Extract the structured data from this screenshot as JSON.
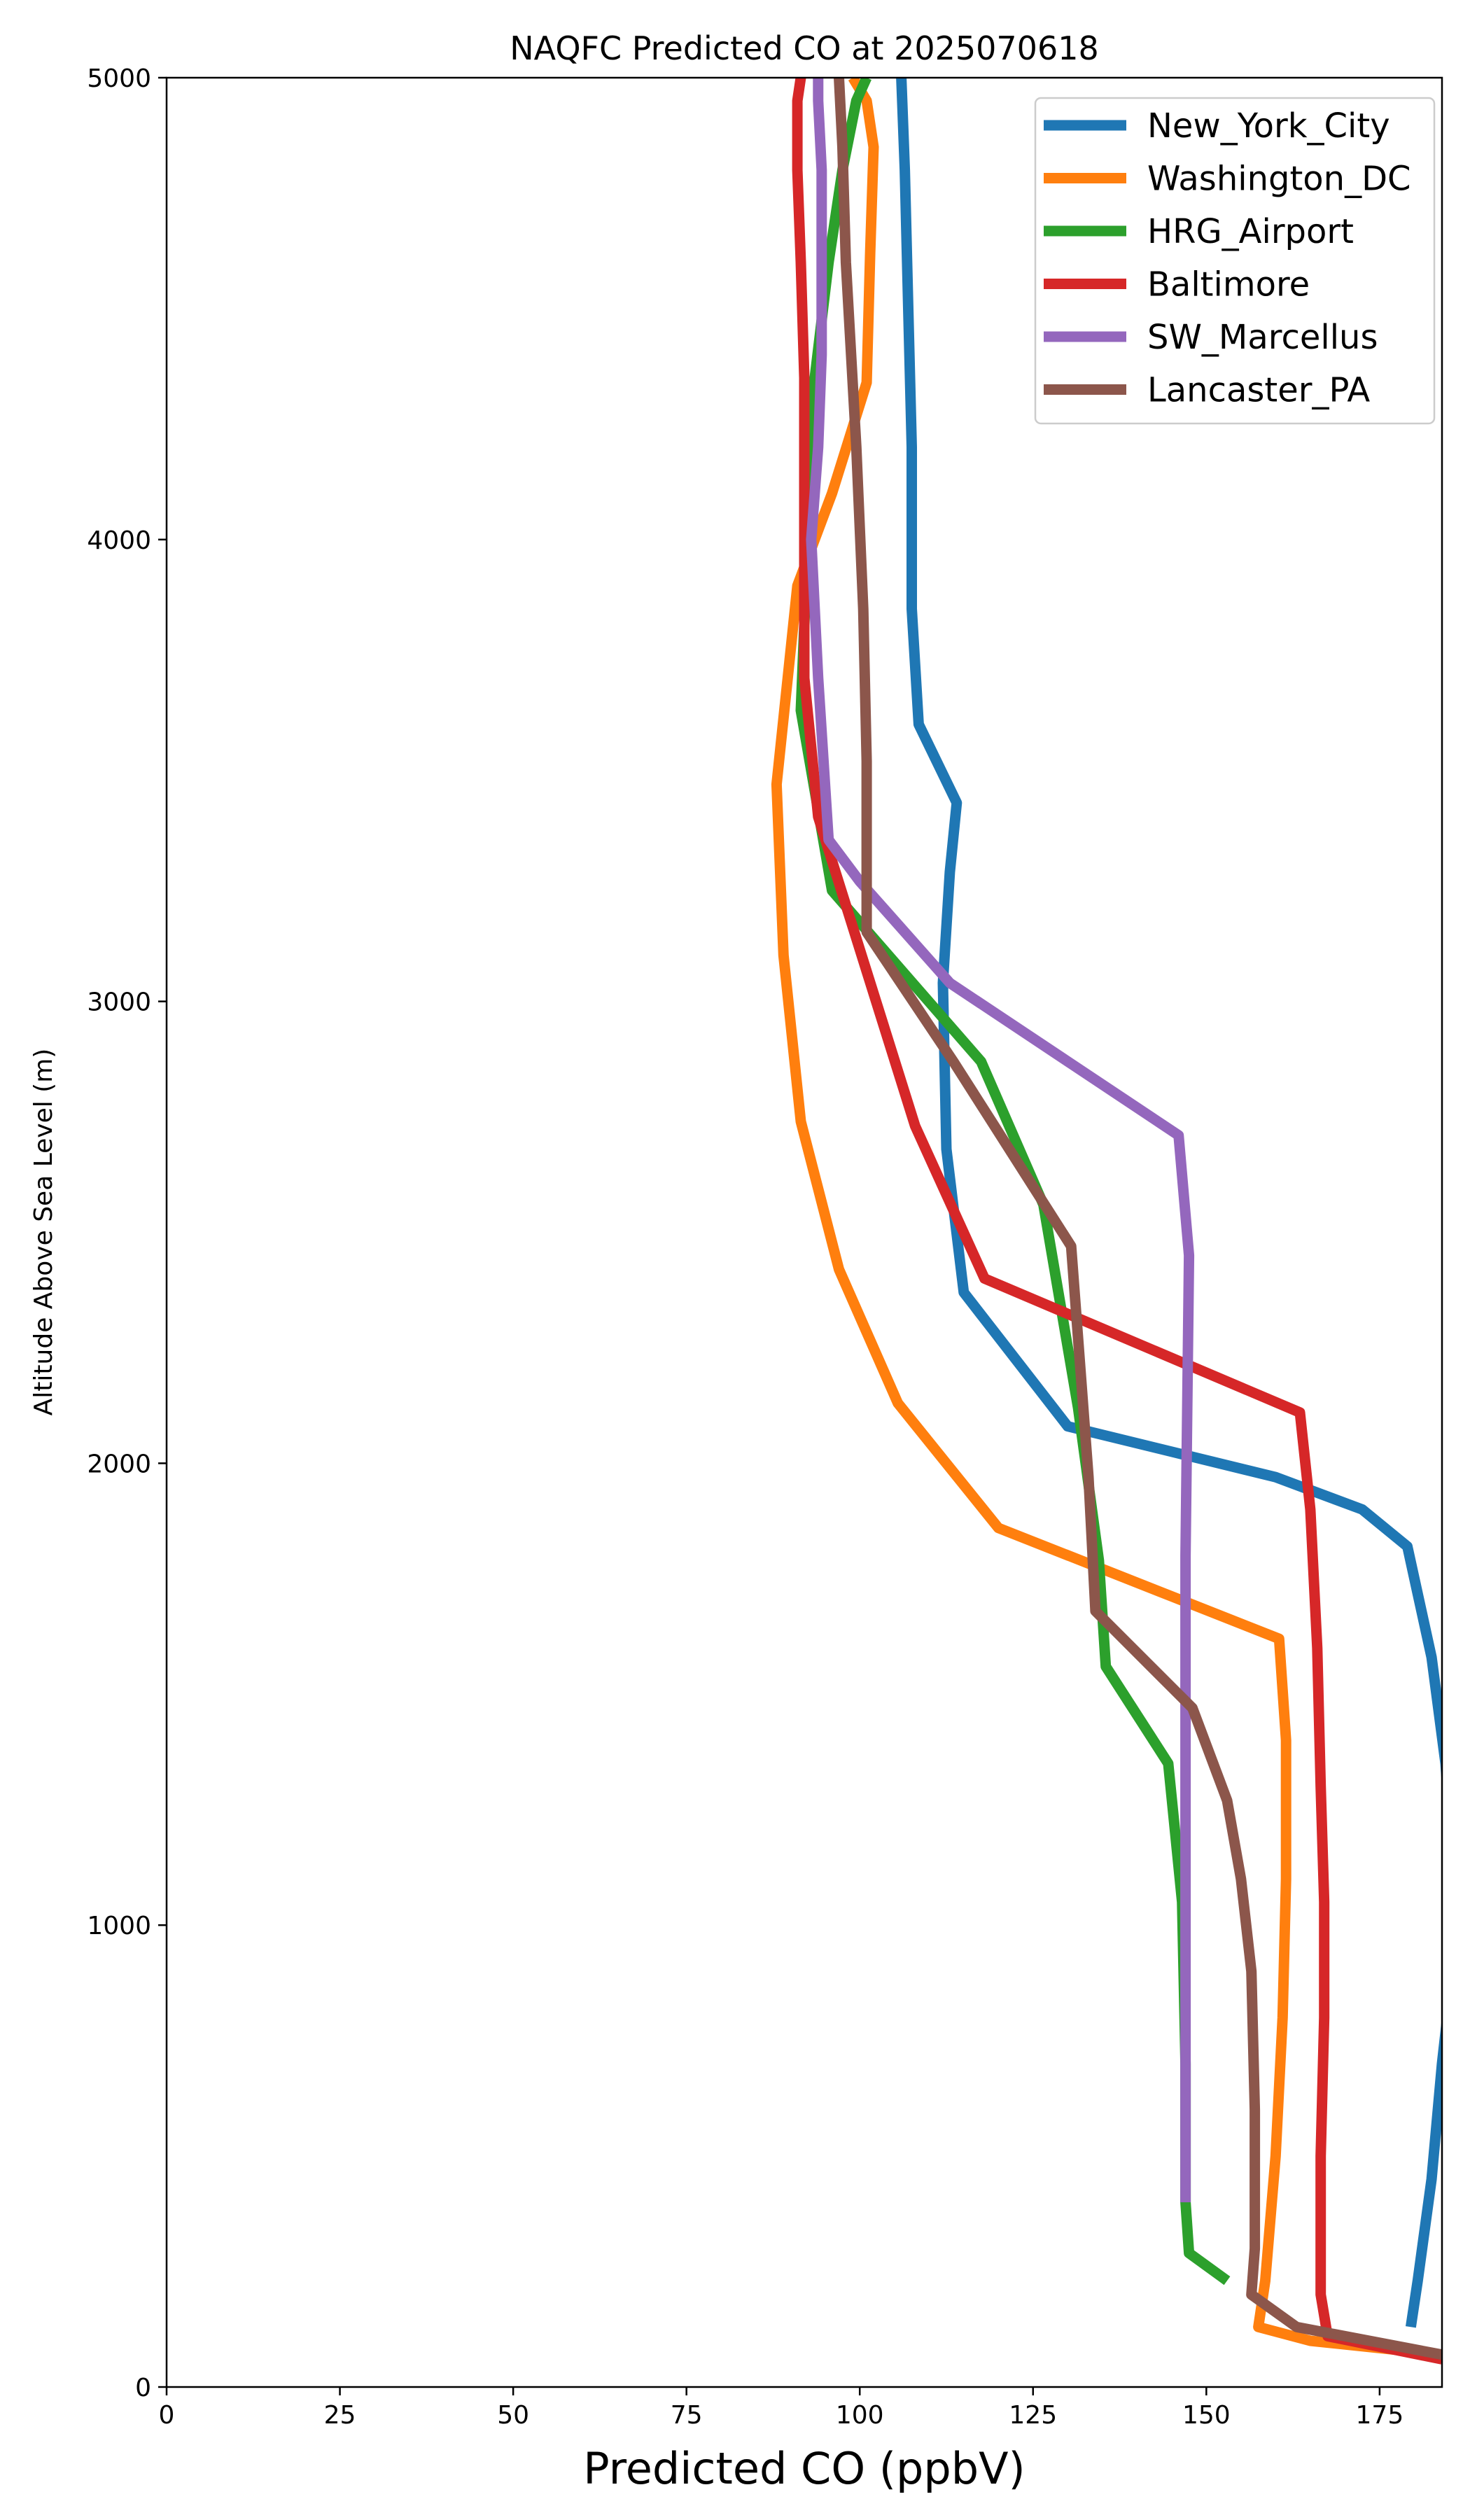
{
  "chart_data": {
    "type": "line",
    "title": "NAQFC Predicted CO at 2025070618",
    "xlabel": "Predicted CO (ppbV)",
    "ylabel": "Altitude Above Sea Level (m)",
    "xlim": [
      0,
      184
    ],
    "ylim": [
      0,
      5000
    ],
    "xticks": [
      0,
      25,
      50,
      75,
      100,
      125,
      150,
      175
    ],
    "yticks": [
      0,
      1000,
      2000,
      3000,
      4000,
      5000
    ],
    "grid": false,
    "legend_position": "top-right",
    "series": [
      {
        "name": "New_York_City",
        "color": "#1f77b4",
        "x": [
          179.5,
          180.5,
          182.5,
          184.0,
          185.5,
          185.5,
          184.5,
          182.5,
          179.0,
          172.5,
          160.0,
          130.0,
          115.0,
          112.5,
          112.0,
          113.0,
          114.0,
          108.5,
          107.5,
          107.5,
          107.0,
          106.5,
          106.0
        ],
        "y": [
          130,
          230,
          450,
          700,
          900,
          1150,
          1350,
          1580,
          1820,
          1900,
          1970,
          2080,
          2370,
          2680,
          3040,
          3280,
          3430,
          3600,
          3850,
          4200,
          4500,
          4800,
          5000
        ]
      },
      {
        "name": "Washington_DC",
        "color": "#ff7f0e",
        "x": [
          184.0,
          165.0,
          157.5,
          158.5,
          160.0,
          161.0,
          161.5,
          161.5,
          160.5,
          120.0,
          105.5,
          97.0,
          91.5,
          89.0,
          88.0,
          91.0,
          96.0,
          101.0,
          101.5,
          102.0,
          101.0,
          99.0
        ],
        "y": [
          70,
          100,
          130,
          230,
          500,
          800,
          1100,
          1400,
          1620,
          1860,
          2130,
          2420,
          2740,
          3100,
          3470,
          3900,
          4100,
          4340,
          4620,
          4850,
          4950,
          5000
        ]
      },
      {
        "name": "HRG_Airport",
        "color": "#2ca02c",
        "x": [
          153.0,
          147.5,
          147.0,
          147.0,
          146.5,
          144.5,
          135.5,
          134.5,
          131.5,
          126.5,
          117.5,
          96.0,
          91.5,
          92.5,
          93.5,
          95.5,
          97.5,
          99.5,
          101.0,
          101.0
        ],
        "y": [
          230,
          290,
          400,
          700,
          1050,
          1350,
          1560,
          1790,
          2120,
          2560,
          2870,
          3240,
          3630,
          4000,
          4350,
          4600,
          4800,
          4950,
          5000,
          5000
        ]
      },
      {
        "name": "Baltimore",
        "color": "#d62728",
        "x": [
          184.0,
          167.5,
          166.5,
          166.5,
          167.0,
          167.0,
          166.5,
          166.0,
          165.0,
          163.5,
          118.0,
          108.0,
          94.0,
          92.0,
          92.0,
          92.0,
          91.5,
          91.0,
          91.0,
          91.5
        ],
        "y": [
          60,
          110,
          200,
          500,
          800,
          1050,
          1300,
          1600,
          1900,
          2110,
          2400,
          2730,
          3400,
          3700,
          4050,
          4350,
          4600,
          4800,
          4950,
          5000
        ]
      },
      {
        "name": "SW_Marcellus",
        "color": "#9467bd",
        "x": [
          147.0,
          147.0,
          147.0,
          147.0,
          147.0,
          147.5,
          146.0,
          113.0,
          100.0,
          95.5,
          94.0,
          93.0,
          94.0,
          94.5,
          94.5,
          94.5,
          94.0,
          94.0
        ],
        "y": [
          400,
          700,
          1000,
          1400,
          1800,
          2450,
          2710,
          3040,
          3260,
          3350,
          3700,
          4000,
          4200,
          4400,
          4600,
          4800,
          4950,
          5000
        ]
      },
      {
        "name": "Lancaster_PA",
        "color": "#8c564b",
        "x": [
          184.0,
          163.0,
          156.5,
          157.0,
          157.0,
          156.5,
          155.0,
          153.0,
          148.0,
          134.0,
          133.0,
          132.0,
          130.5,
          113.5,
          101.0,
          101.0,
          101.0,
          100.5,
          99.5,
          98.0,
          97.5,
          97.0
        ],
        "y": [
          70,
          130,
          200,
          300,
          600,
          900,
          1100,
          1270,
          1470,
          1680,
          1970,
          2170,
          2470,
          2870,
          3150,
          3350,
          3520,
          3850,
          4200,
          4600,
          4850,
          5000
        ]
      }
    ]
  }
}
